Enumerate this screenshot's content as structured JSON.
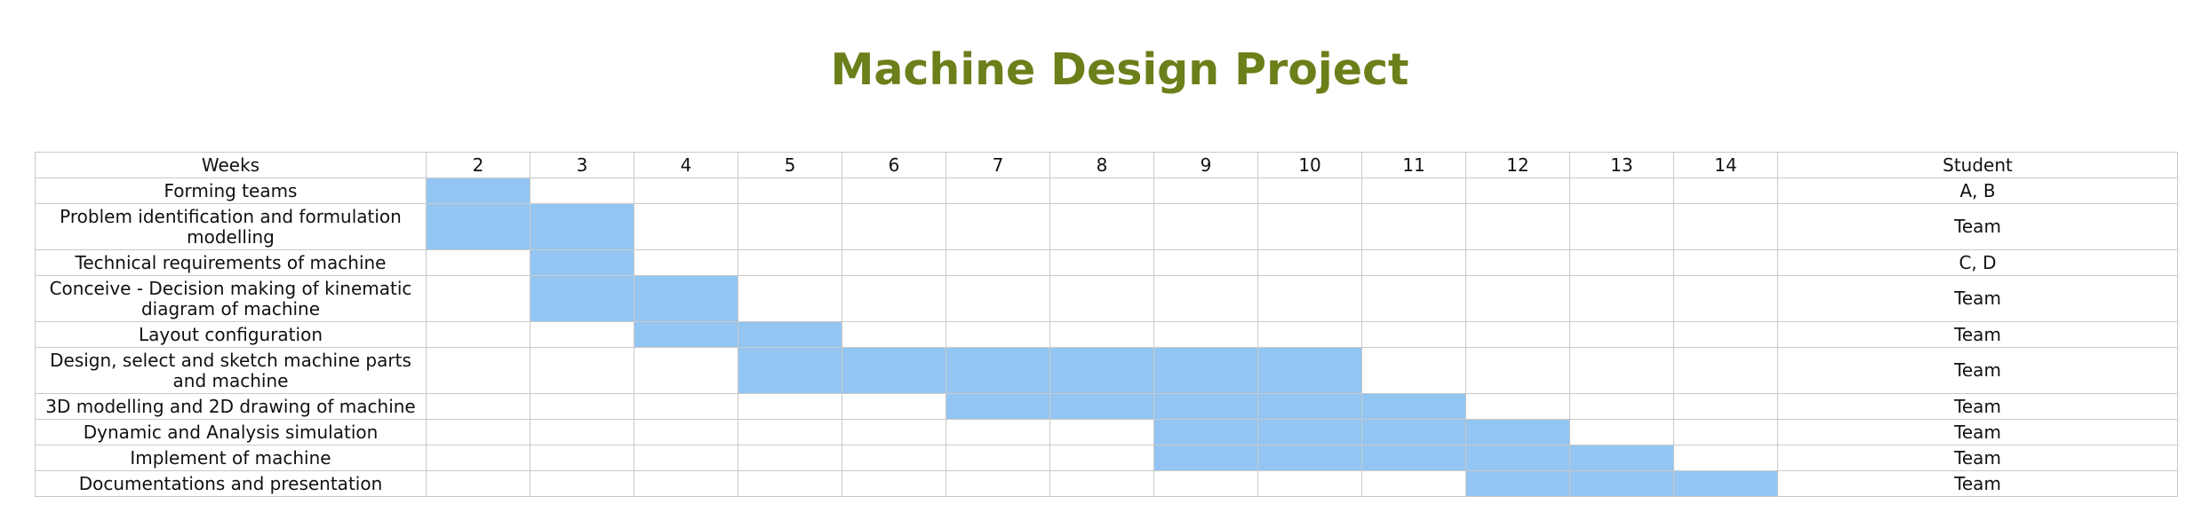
{
  "title": "Machine Design Project",
  "colors": {
    "title": "#6b7f1a",
    "bar": "#93c5f2",
    "grid": "#c9c9c9"
  },
  "header": {
    "weeks_label": "Weeks",
    "student_label": "Student"
  },
  "chart_data": {
    "type": "gantt",
    "title": "Machine Design Project",
    "weeks": [
      2,
      3,
      4,
      5,
      6,
      7,
      8,
      9,
      10,
      11,
      12,
      13,
      14
    ],
    "tasks": [
      {
        "name": "Forming teams",
        "start_week": 2,
        "end_week": 2,
        "student": "A, B"
      },
      {
        "name": "Problem identification and formulation modelling",
        "start_week": 2,
        "end_week": 3,
        "student": "Team"
      },
      {
        "name": "Technical requirements of machine",
        "start_week": 3,
        "end_week": 3,
        "student": "C, D"
      },
      {
        "name": "Conceive - Decision making of kinematic diagram of machine",
        "start_week": 3,
        "end_week": 4,
        "student": "Team"
      },
      {
        "name": "Layout configuration",
        "start_week": 4,
        "end_week": 5,
        "student": "Team"
      },
      {
        "name": "Design, select and sketch machine parts and machine",
        "start_week": 5,
        "end_week": 10,
        "student": "Team"
      },
      {
        "name": "3D modelling and 2D drawing of machine",
        "start_week": 7,
        "end_week": 11,
        "student": "Team"
      },
      {
        "name": "Dynamic and Analysis simulation",
        "start_week": 9,
        "end_week": 12,
        "student": "Team"
      },
      {
        "name": "Implement of machine",
        "start_week": 9,
        "end_week": 13,
        "student": "Team"
      },
      {
        "name": "Documentations and presentation",
        "start_week": 12,
        "end_week": 14,
        "student": "Team"
      }
    ]
  }
}
